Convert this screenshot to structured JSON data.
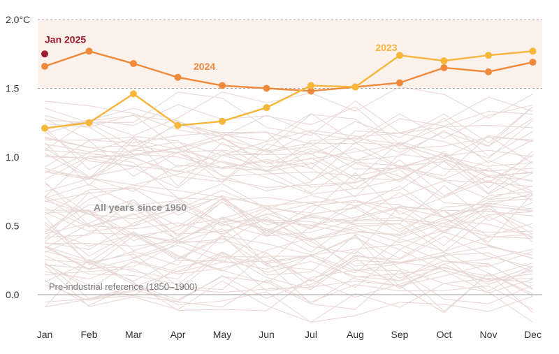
{
  "chart_data": {
    "type": "line",
    "title": "",
    "xlabel": "",
    "ylabel": "",
    "y_unit_label": "2.0°C",
    "categories": [
      "Jan",
      "Feb",
      "Mar",
      "Apr",
      "May",
      "Jun",
      "Jul",
      "Aug",
      "Sep",
      "Oct",
      "Nov",
      "Dec"
    ],
    "ylim": [
      -0.2,
      2.05
    ],
    "yticks": [
      {
        "value": 2.0,
        "label": "2.0°C"
      },
      {
        "value": 1.5,
        "label": "1.5"
      },
      {
        "value": 1.0,
        "label": "1.0"
      },
      {
        "value": 0.5,
        "label": "0.5"
      },
      {
        "value": 0.0,
        "label": "0.0"
      }
    ],
    "threshold_band": {
      "from": 1.5,
      "to": 2.0,
      "color": "#fdf1ec"
    },
    "grid": "dashed at 1.5 and 2.0",
    "series": [
      {
        "name": "2024",
        "color": "#ef8a3c",
        "values": [
          1.66,
          1.77,
          1.68,
          1.58,
          1.52,
          1.5,
          1.48,
          1.51,
          1.54,
          1.65,
          1.62,
          1.69
        ]
      },
      {
        "name": "2023",
        "color": "#f5b63a",
        "values": [
          1.21,
          1.25,
          1.46,
          1.23,
          1.26,
          1.36,
          1.52,
          1.51,
          1.74,
          1.7,
          1.74,
          1.77
        ]
      },
      {
        "name": "Jan 2025",
        "color": "#9b1c2e",
        "values": [
          1.75,
          null,
          null,
          null,
          null,
          null,
          null,
          null,
          null,
          null,
          null,
          null
        ]
      }
    ],
    "background_series_label": "All years since 1950",
    "background_series_color": "#e8d8d5",
    "reference_label": "Pre-industrial reference (1850–1900)"
  }
}
